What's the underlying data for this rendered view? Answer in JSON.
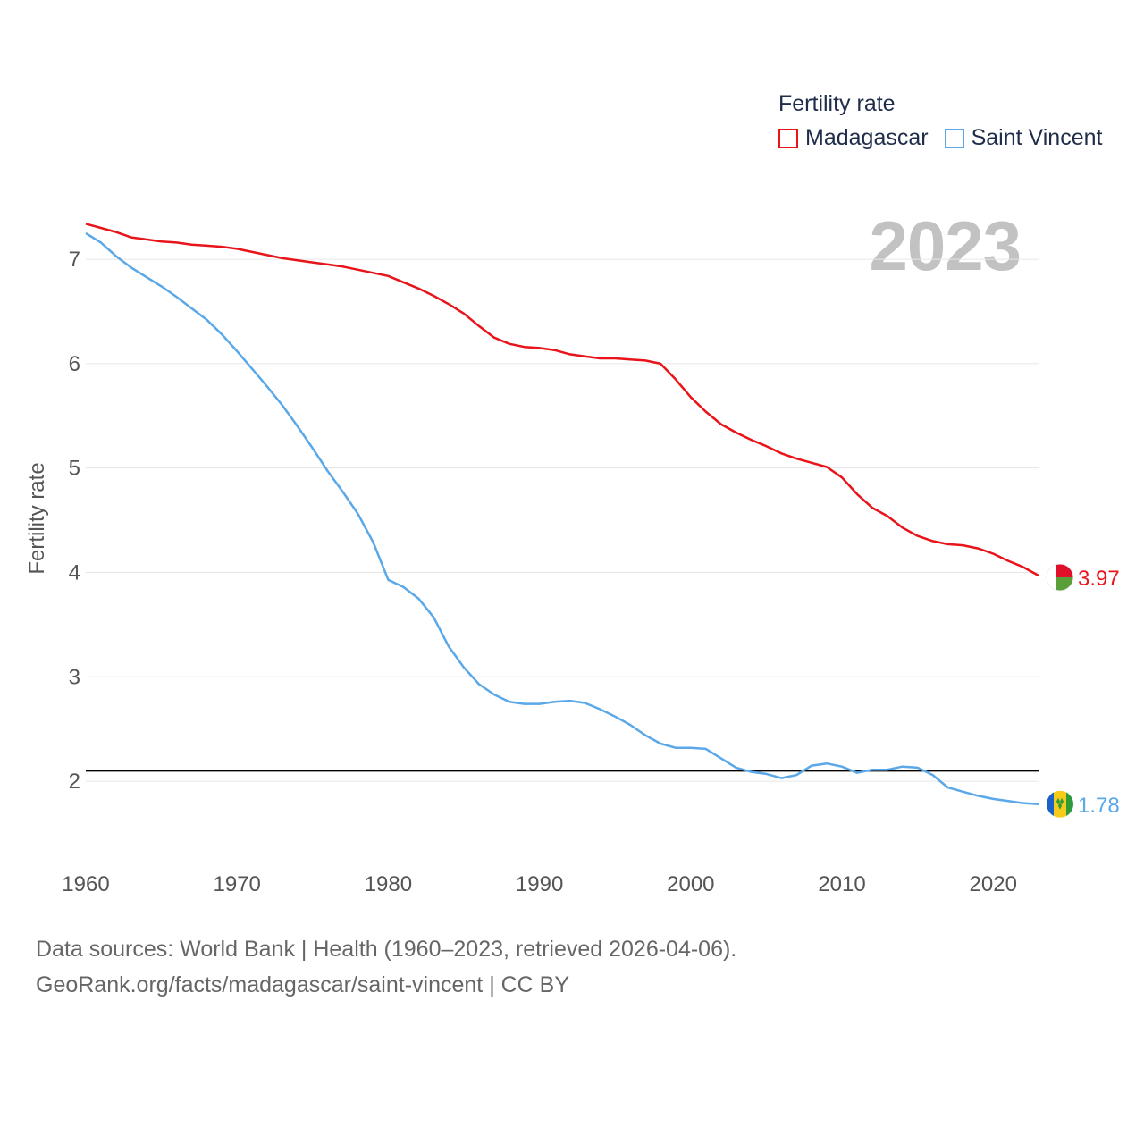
{
  "legend": {
    "title": "Fertility rate",
    "items": [
      {
        "label": "Madagascar",
        "color": "#e8141a"
      },
      {
        "label": "Saint Vincent",
        "color": "#5aa8e8"
      }
    ]
  },
  "year_label": "2023",
  "footer": {
    "line1": "Data sources: World Bank | Health (1960–2023, retrieved 2026-04-06).",
    "line2": "GeoRank.org/facts/madagascar/saint-vincent | CC BY"
  },
  "chart_data": {
    "type": "line",
    "title": "Fertility rate",
    "xlabel": "",
    "ylabel": "Fertility rate",
    "xlim": [
      1960,
      2023
    ],
    "ylim": [
      1.35,
      7.6
    ],
    "x_ticks": [
      1960,
      1970,
      1980,
      1990,
      2000,
      2010,
      2020
    ],
    "y_ticks": [
      2,
      3,
      4,
      5,
      6,
      7
    ],
    "grid": true,
    "reference_line": {
      "y": 2.1,
      "color": "#000000"
    },
    "x": [
      1960,
      1961,
      1962,
      1963,
      1964,
      1965,
      1966,
      1967,
      1968,
      1969,
      1970,
      1971,
      1972,
      1973,
      1974,
      1975,
      1976,
      1977,
      1978,
      1979,
      1980,
      1981,
      1982,
      1983,
      1984,
      1985,
      1986,
      1987,
      1988,
      1989,
      1990,
      1991,
      1992,
      1993,
      1994,
      1995,
      1996,
      1997,
      1998,
      1999,
      2000,
      2001,
      2002,
      2003,
      2004,
      2005,
      2006,
      2007,
      2008,
      2009,
      2010,
      2011,
      2012,
      2013,
      2014,
      2015,
      2016,
      2017,
      2018,
      2019,
      2020,
      2021,
      2022,
      2023
    ],
    "series": [
      {
        "name": "Madagascar",
        "color": "#e8141a",
        "end_label": "3.97",
        "values": [
          7.34,
          7.3,
          7.26,
          7.21,
          7.19,
          7.17,
          7.16,
          7.14,
          7.13,
          7.12,
          7.1,
          7.07,
          7.04,
          7.01,
          6.99,
          6.97,
          6.95,
          6.93,
          6.9,
          6.87,
          6.84,
          6.78,
          6.72,
          6.65,
          6.57,
          6.48,
          6.36,
          6.25,
          6.19,
          6.16,
          6.15,
          6.13,
          6.09,
          6.07,
          6.05,
          6.05,
          6.04,
          6.03,
          6.0,
          5.85,
          5.68,
          5.54,
          5.42,
          5.34,
          5.27,
          5.21,
          5.14,
          5.09,
          5.05,
          5.01,
          4.91,
          4.75,
          4.62,
          4.54,
          4.43,
          4.35,
          4.3,
          4.27,
          4.26,
          4.23,
          4.18,
          4.11,
          4.05,
          3.97
        ]
      },
      {
        "name": "Saint Vincent",
        "color": "#5aa8e8",
        "end_label": "1.78",
        "values": [
          7.25,
          7.16,
          7.03,
          6.92,
          6.83,
          6.74,
          6.64,
          6.53,
          6.42,
          6.28,
          6.12,
          5.95,
          5.78,
          5.6,
          5.4,
          5.19,
          4.97,
          4.77,
          4.56,
          4.29,
          3.93,
          3.86,
          3.75,
          3.57,
          3.29,
          3.09,
          2.93,
          2.83,
          2.76,
          2.74,
          2.74,
          2.76,
          2.77,
          2.75,
          2.69,
          2.62,
          2.54,
          2.44,
          2.36,
          2.32,
          2.32,
          2.31,
          2.22,
          2.13,
          2.09,
          2.07,
          2.03,
          2.06,
          2.15,
          2.17,
          2.14,
          2.08,
          2.11,
          2.11,
          2.14,
          2.13,
          2.06,
          1.94,
          1.9,
          1.86,
          1.83,
          1.81,
          1.79,
          1.78
        ]
      }
    ]
  }
}
